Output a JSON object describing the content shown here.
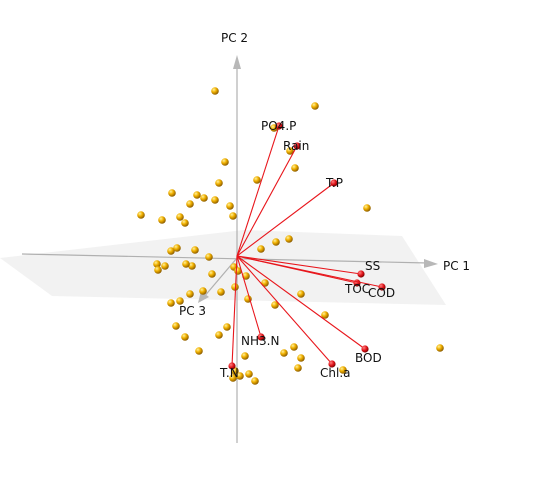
{
  "chart_data": {
    "type": "scatter",
    "axes": {
      "x": "PC 1",
      "y": "PC 2",
      "z": "PC 3"
    },
    "colors": {
      "score_fill": "#f2b200",
      "score_shadow": "#8a5a00",
      "loading_line": "#e8161c",
      "loading_tip": "#e0141a",
      "axis": "#b0b0b0",
      "plane": "#eeeeee"
    },
    "loadings": [
      {
        "name": "PO4.P",
        "x": 42,
        "y": 130
      },
      {
        "name": "Rain",
        "x": 60,
        "y": 110
      },
      {
        "name": "T.P",
        "x": 97,
        "y": 73
      },
      {
        "name": "SS",
        "x": 124,
        "y": -18
      },
      {
        "name": "TOC",
        "x": 120,
        "y": -27
      },
      {
        "name": "COD",
        "x": 145,
        "y": -31
      },
      {
        "name": "BOD",
        "x": 128,
        "y": -93
      },
      {
        "name": "Chl.a",
        "x": 95,
        "y": -108
      },
      {
        "name": "NH3.N",
        "x": 24,
        "y": -81
      },
      {
        "name": "T.N",
        "x": -5,
        "y": -110
      }
    ],
    "scores": [
      [
        -22,
        165
      ],
      [
        78,
        150
      ],
      [
        37,
        128
      ],
      [
        53,
        105
      ],
      [
        -12,
        94
      ],
      [
        58,
        88
      ],
      [
        20,
        76
      ],
      [
        -18,
        73
      ],
      [
        -65,
        63
      ],
      [
        -40,
        61
      ],
      [
        -33,
        58
      ],
      [
        -22,
        56
      ],
      [
        -47,
        52
      ],
      [
        130,
        48
      ],
      [
        -7,
        50
      ],
      [
        -96,
        41
      ],
      [
        -57,
        39
      ],
      [
        -75,
        36
      ],
      [
        -52,
        33
      ],
      [
        -4,
        40
      ],
      [
        52,
        17
      ],
      [
        39,
        14
      ],
      [
        -66,
        5
      ],
      [
        -60,
        8
      ],
      [
        -42,
        6
      ],
      [
        -28,
        -1
      ],
      [
        24,
        7
      ],
      [
        -45,
        -10
      ],
      [
        -51,
        -8
      ],
      [
        -80,
        -8
      ],
      [
        -72,
        -10
      ],
      [
        -3,
        -11
      ],
      [
        -79,
        -14
      ],
      [
        -25,
        -18
      ],
      [
        1,
        -15
      ],
      [
        9,
        -20
      ],
      [
        28,
        -27
      ],
      [
        -34,
        -35
      ],
      [
        -16,
        -36
      ],
      [
        64,
        -38
      ],
      [
        -2,
        -31
      ],
      [
        -47,
        -38
      ],
      [
        11,
        -43
      ],
      [
        -57,
        -45
      ],
      [
        -66,
        -47
      ],
      [
        88,
        -59
      ],
      [
        -61,
        -70
      ],
      [
        38,
        -49
      ],
      [
        -10,
        -71
      ],
      [
        -18,
        -79
      ],
      [
        -52,
        -81
      ],
      [
        57,
        -91
      ],
      [
        47,
        -97
      ],
      [
        8,
        -100
      ],
      [
        -38,
        -95
      ],
      [
        64,
        -102
      ],
      [
        -2,
        -115
      ],
      [
        12,
        -118
      ],
      [
        -4,
        -122
      ],
      [
        3,
        -120
      ],
      [
        18,
        -125
      ],
      [
        203,
        -92
      ],
      [
        106,
        -114
      ],
      [
        61,
        -112
      ]
    ]
  }
}
